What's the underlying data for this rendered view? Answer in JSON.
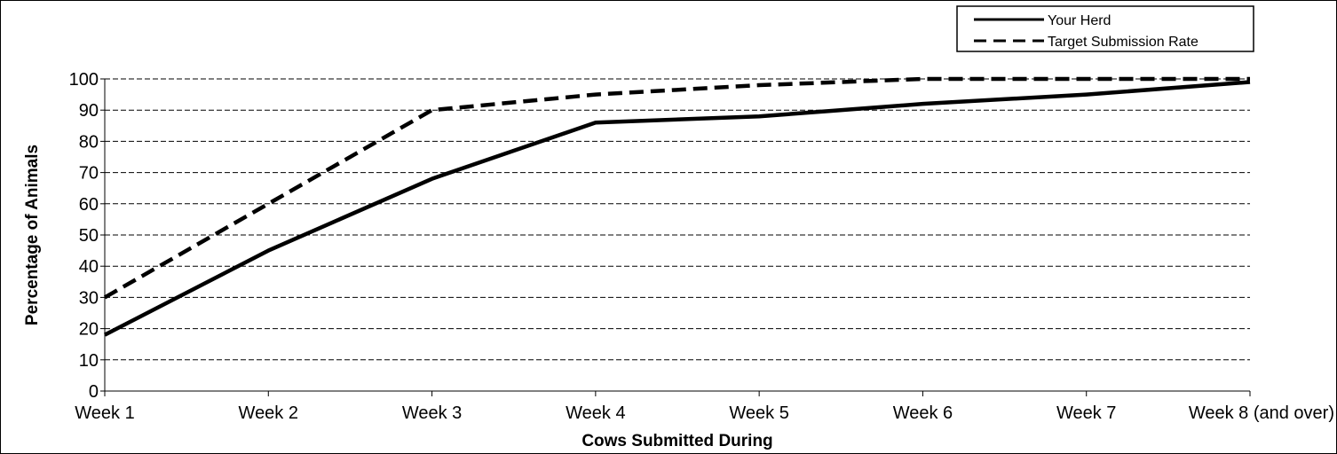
{
  "chart_data": {
    "type": "line",
    "title": "",
    "xlabel": "Cows Submitted During",
    "ylabel": "Percentage of Animals",
    "categories": [
      "Week 1",
      "Week 2",
      "Week 3",
      "Week 4",
      "Week 5",
      "Week 6",
      "Week 7",
      "Week 8 (and over)"
    ],
    "ylim": [
      0,
      100
    ],
    "yticks": [
      "0",
      "10",
      "20",
      "30",
      "40",
      "50",
      "60",
      "70",
      "80",
      "90",
      "100"
    ],
    "grid": "horizontal dashed",
    "legend_position": "top-right",
    "series": [
      {
        "name": "Your Herd",
        "style": "solid",
        "color": "#000000",
        "values": [
          18,
          45,
          68,
          86,
          88,
          92,
          95,
          99
        ]
      },
      {
        "name": "Target Submission Rate",
        "style": "dashed",
        "color": "#000000",
        "values": [
          30,
          60,
          90,
          95,
          98,
          100,
          100,
          100
        ]
      }
    ]
  }
}
